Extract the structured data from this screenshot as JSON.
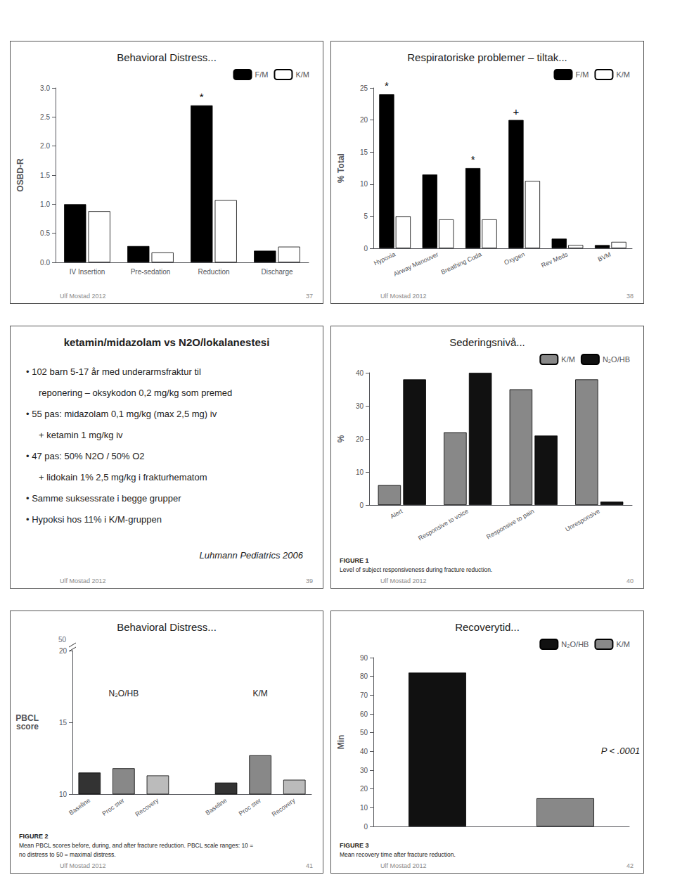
{
  "chart_data": [
    {
      "type": "bar",
      "title": "Behavioral Distress...",
      "y_label": "OSBD-R",
      "categories": [
        "IV Insertion",
        "Pre-sedation",
        "Reduction",
        "Discharge"
      ],
      "series": [
        {
          "name": "F/M",
          "color": "#000000",
          "values": [
            1.0,
            0.28,
            2.7,
            0.2
          ]
        },
        {
          "name": "K/M",
          "color": "#ffffff",
          "values": [
            0.88,
            0.17,
            1.07,
            0.27
          ]
        }
      ],
      "ylim": [
        0,
        3
      ],
      "yticks": [
        {
          "value": 0,
          "label": "0.0"
        },
        0.5,
        {
          "value": 1,
          "label": "1.0"
        },
        1.5,
        {
          "value": 2,
          "label": "2.0"
        },
        2.5,
        {
          "value": 3,
          "label": "3.0"
        }
      ],
      "grid": false,
      "legend": "upper right",
      "annotations": [
        {
          "text": "*",
          "category": "Reduction",
          "series": "F/M"
        }
      ],
      "footnote": "Ulf Mostad 2012",
      "page_number": "37"
    },
    {
      "type": "bar",
      "title": "Respiratoriske problemer – tiltak...",
      "y_label": "% Total",
      "categories": [
        "Hypoxia",
        "Airway Manouver",
        "Breathing Cuda",
        "Oxygen",
        "Rev Meds",
        "BVM"
      ],
      "series": [
        {
          "name": "F/M",
          "color": "#000000",
          "values": [
            24.0,
            11.5,
            12.5,
            20.0,
            1.5,
            0.5
          ]
        },
        {
          "name": "K/M",
          "color": "#ffffff",
          "values": [
            5.0,
            4.5,
            4.5,
            10.5,
            0.5,
            1.0
          ]
        }
      ],
      "ylim": [
        0,
        25
      ],
      "yticks": [
        0,
        5,
        10,
        15,
        20,
        25
      ],
      "grid": false,
      "legend": "upper right",
      "annotations": [
        {
          "text": "*",
          "category": "Hypoxia",
          "series": "F/M"
        },
        {
          "text": "*",
          "category": "Breathing Cuda",
          "series": "F/M"
        },
        {
          "text": "+",
          "category": "Oxygen",
          "series": "F/M"
        }
      ],
      "footnote": "Ulf Mostad 2012",
      "page_number": "38"
    },
    {
      "type": "text",
      "title": "ketamin/midazolam vs N2O/lokalanestesi",
      "bullets": [
        [
          "• 102 barn 5-17 år med underarmsfraktur til",
          "reponering – oksykodon 0,2 mg/kg som premed"
        ],
        [
          "• 55 pas: midazolam 0,1 mg/kg (max 2,5 mg) iv",
          "+ ketamin 1 mg/kg iv"
        ],
        [
          "• 47 pas: 50% N2O / 50% O2",
          "+ lidokain 1% 2,5 mg/kg i frakturhematom"
        ],
        [
          "• Samme suksessrate i begge grupper"
        ],
        [
          "• Hypoksi hos 11% i K/M-gruppen"
        ]
      ],
      "citation": "Luhmann Pediatrics 2006",
      "footnote": "Ulf Mostad 2012",
      "page_number": "39"
    },
    {
      "type": "bar",
      "title": "Sederingsnivå...",
      "y_label": "%",
      "categories": [
        "Alert",
        "Responsive to voice",
        "Responsive to pain",
        "Unresponsive"
      ],
      "series": [
        {
          "name": "K/M",
          "color": "#888888",
          "values": [
            6,
            22,
            35,
            38
          ]
        },
        {
          "name": "N₂O/HB",
          "color": "#111111",
          "values": [
            38,
            40,
            21,
            1
          ]
        }
      ],
      "ylim": [
        0,
        40
      ],
      "yticks": [
        0,
        10,
        20,
        30,
        40
      ],
      "grid": false,
      "legend": "upper right",
      "fig_label": "FIGURE 1",
      "fig_caption": "Level of subject responsiveness during fracture reduction.",
      "footnote": "Ulf Mostad 2012",
      "page_number": "40"
    },
    {
      "type": "bar",
      "title": "Behavioral Distress...",
      "y_label": [
        "PBCL",
        "score"
      ],
      "groups": [
        {
          "name": "N₂O/HB",
          "categories": [
            "Baseline",
            "Proc ster",
            "Recovery"
          ],
          "values": [
            11.5,
            11.8,
            11.3
          ],
          "colors": [
            "#333333",
            "#888888",
            "#bbbbbb"
          ]
        },
        {
          "name": "K/M",
          "categories": [
            "Baseline",
            "Proc ster",
            "Recovery"
          ],
          "values": [
            10.8,
            12.7,
            11.0
          ],
          "colors": [
            "#333333",
            "#888888",
            "#bbbbbb"
          ]
        }
      ],
      "ylim": [
        10,
        20
      ],
      "yticks": [
        10,
        15,
        20
      ],
      "y_break": 50,
      "grid": false,
      "fig_label": "FIGURE 2",
      "fig_caption": [
        "Mean PBCL scores before, during, and after fracture reduction. PBCL scale ranges: 10 =",
        "no distress to 50 = maximal distress."
      ],
      "footnote": "Ulf Mostad 2012",
      "page_number": "41"
    },
    {
      "type": "bar",
      "title": "Recoverytid...",
      "y_label": "Min",
      "categories": [
        "N₂O/HB",
        "K/M"
      ],
      "values": [
        82,
        15
      ],
      "colors": [
        "#111111",
        "#888888"
      ],
      "ylim": [
        0,
        90
      ],
      "yticks": [
        0,
        10,
        20,
        30,
        40,
        50,
        60,
        70,
        80,
        90
      ],
      "grid": false,
      "legend": "upper right",
      "tick_labels": "y",
      "annotations": [
        {
          "text": "P < .0001"
        }
      ],
      "fig_label": "FIGURE 3",
      "fig_caption": "Mean recovery time after fracture reduction.",
      "footnote": "Ulf Mostad 2012",
      "page_number": "42"
    }
  ]
}
